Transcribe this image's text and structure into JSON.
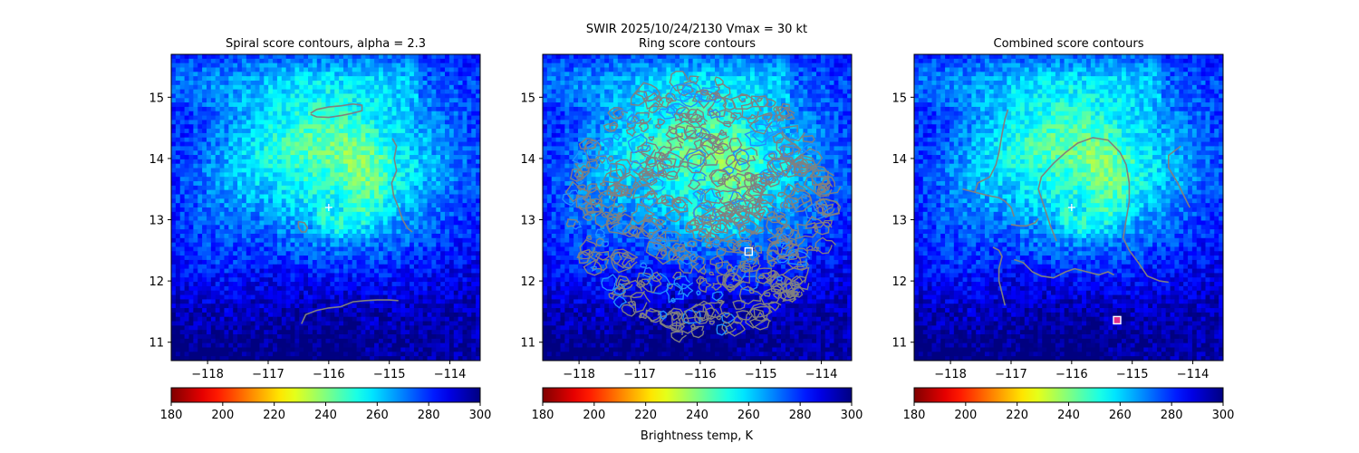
{
  "figure": {
    "suptitle_line1": "SWIR  2025/10/24/2130    Vmax = 30 kt",
    "colorbar_label": "Brightness temp, K"
  },
  "chart_data": [
    {
      "type": "heatmap",
      "title": "Spiral score contours, alpha =  2.3",
      "xlim": [
        -118.6,
        -113.5
      ],
      "ylim": [
        10.7,
        15.7
      ],
      "xticks": [
        -118,
        -117,
        -116,
        -115,
        -114
      ],
      "xtick_labels": [
        "−118",
        "−117",
        "−116",
        "−115",
        "−114"
      ],
      "yticks": [
        11,
        12,
        13,
        14,
        15
      ],
      "ytick_labels": [
        "11",
        "12",
        "13",
        "14",
        "15"
      ],
      "colormap": "jet_r",
      "color_range": [
        180,
        300
      ],
      "center_marker": {
        "lon": -116.0,
        "lat": 13.2,
        "symbol": "+",
        "color": "#ffffff"
      },
      "square_marker": null,
      "contour_color": "#808080",
      "contours": [
        [
          [
            -116.3,
            14.74
          ],
          [
            -116.2,
            14.8
          ],
          [
            -116.0,
            14.84
          ],
          [
            -115.8,
            14.86
          ],
          [
            -115.6,
            14.89
          ],
          [
            -115.45,
            14.87
          ],
          [
            -115.45,
            14.78
          ],
          [
            -115.6,
            14.74
          ],
          [
            -115.8,
            14.7
          ],
          [
            -116.0,
            14.67
          ],
          [
            -116.2,
            14.68
          ],
          [
            -116.3,
            14.72
          ]
        ],
        [
          [
            -114.95,
            14.33
          ],
          [
            -114.88,
            14.2
          ],
          [
            -114.92,
            14.0
          ],
          [
            -114.88,
            13.8
          ],
          [
            -114.96,
            13.6
          ],
          [
            -114.93,
            13.4
          ],
          [
            -114.85,
            13.2
          ],
          [
            -114.78,
            13.0
          ],
          [
            -114.7,
            12.86
          ],
          [
            -114.62,
            12.8
          ]
        ],
        [
          [
            -116.5,
            12.97
          ],
          [
            -116.4,
            12.95
          ],
          [
            -116.35,
            12.87
          ],
          [
            -116.38,
            12.8
          ],
          [
            -116.45,
            12.8
          ],
          [
            -116.5,
            12.88
          ],
          [
            -116.5,
            12.97
          ]
        ],
        [
          [
            -116.45,
            11.3
          ],
          [
            -116.38,
            11.45
          ],
          [
            -116.2,
            11.52
          ],
          [
            -116.0,
            11.56
          ],
          [
            -115.8,
            11.58
          ],
          [
            -115.6,
            11.66
          ],
          [
            -115.4,
            11.68
          ],
          [
            -115.2,
            11.69
          ],
          [
            -115.0,
            11.69
          ],
          [
            -114.85,
            11.68
          ]
        ]
      ]
    },
    {
      "type": "heatmap",
      "title": "Ring score contours",
      "xlim": [
        -118.6,
        -113.5
      ],
      "ylim": [
        10.7,
        15.7
      ],
      "xticks": [
        -118,
        -117,
        -116,
        -115,
        -114
      ],
      "xtick_labels": [
        "−118",
        "−117",
        "−116",
        "−115",
        "−114"
      ],
      "yticks": [
        11,
        12,
        13,
        14,
        15
      ],
      "ytick_labels": [
        "11",
        "12",
        "13",
        "14",
        "15"
      ],
      "colormap": "jet_r",
      "color_range": [
        180,
        300
      ],
      "center_marker": null,
      "square_marker": {
        "lon": -115.2,
        "lat": 12.48,
        "color": "#ffffff"
      },
      "contour_color": "#808080",
      "contour_region": {
        "center_lon": -116.0,
        "center_lat": 13.2,
        "radius_deg": 2.2
      },
      "contours": []
    },
    {
      "type": "heatmap",
      "title": "Combined score contours",
      "xlim": [
        -118.6,
        -113.5
      ],
      "ylim": [
        10.7,
        15.7
      ],
      "xticks": [
        -118,
        -117,
        -116,
        -115,
        -114
      ],
      "xtick_labels": [
        "−118",
        "−117",
        "−116",
        "−115",
        "−114"
      ],
      "yticks": [
        11,
        12,
        13,
        14,
        15
      ],
      "ytick_labels": [
        "11",
        "12",
        "13",
        "14",
        "15"
      ],
      "colormap": "jet_r",
      "color_range": [
        180,
        300
      ],
      "center_marker": {
        "lon": -116.0,
        "lat": 13.2,
        "symbol": "+",
        "color": "#ffffff"
      },
      "square_marker": {
        "lon": -115.25,
        "lat": 11.36,
        "color": "#ffffff",
        "fill": "#e0308a"
      },
      "contour_color": "#808080",
      "contours": [
        [
          [
            -117.6,
            13.45
          ],
          [
            -117.55,
            13.6
          ],
          [
            -117.35,
            13.7
          ],
          [
            -117.25,
            13.9
          ],
          [
            -117.2,
            14.1
          ],
          [
            -117.15,
            14.4
          ],
          [
            -117.1,
            14.65
          ],
          [
            -117.05,
            14.8
          ]
        ],
        [
          [
            -117.8,
            13.5
          ],
          [
            -117.6,
            13.45
          ],
          [
            -117.4,
            13.4
          ],
          [
            -117.2,
            13.36
          ],
          [
            -117.1,
            13.3
          ],
          [
            -117.0,
            13.2
          ],
          [
            -116.95,
            13.05
          ]
        ],
        [
          [
            -117.0,
            12.92
          ],
          [
            -116.85,
            12.9
          ],
          [
            -116.75,
            12.9
          ],
          [
            -116.6,
            12.95
          ],
          [
            -116.55,
            13.02
          ]
        ],
        [
          [
            -116.25,
            12.65
          ],
          [
            -116.35,
            12.9
          ],
          [
            -116.45,
            13.2
          ],
          [
            -116.55,
            13.5
          ],
          [
            -116.5,
            13.7
          ],
          [
            -116.3,
            13.92
          ],
          [
            -116.1,
            14.1
          ],
          [
            -115.9,
            14.25
          ],
          [
            -115.65,
            14.34
          ],
          [
            -115.4,
            14.3
          ],
          [
            -115.2,
            14.1
          ],
          [
            -115.1,
            13.9
          ],
          [
            -115.05,
            13.6
          ],
          [
            -115.05,
            13.3
          ],
          [
            -115.1,
            13.0
          ],
          [
            -115.15,
            12.7
          ],
          [
            -115.05,
            12.5
          ],
          [
            -114.9,
            12.3
          ],
          [
            -114.75,
            12.08
          ],
          [
            -114.55,
            12.0
          ],
          [
            -114.4,
            11.98
          ]
        ],
        [
          [
            -114.2,
            14.2
          ],
          [
            -114.4,
            14.05
          ],
          [
            -114.4,
            13.85
          ],
          [
            -114.25,
            13.6
          ],
          [
            -114.15,
            13.4
          ],
          [
            -114.05,
            13.2
          ]
        ],
        [
          [
            -117.3,
            12.55
          ],
          [
            -117.2,
            12.5
          ],
          [
            -117.15,
            12.4
          ],
          [
            -117.2,
            12.2
          ],
          [
            -117.2,
            12.0
          ],
          [
            -117.15,
            11.8
          ],
          [
            -117.1,
            11.6
          ]
        ],
        [
          [
            -116.95,
            12.35
          ],
          [
            -116.8,
            12.3
          ],
          [
            -116.65,
            12.15
          ],
          [
            -116.5,
            12.08
          ],
          [
            -116.3,
            12.05
          ],
          [
            -116.1,
            12.15
          ],
          [
            -115.95,
            12.2
          ],
          [
            -115.75,
            12.15
          ],
          [
            -115.55,
            12.1
          ],
          [
            -115.4,
            12.15
          ],
          [
            -115.3,
            12.1
          ]
        ]
      ]
    }
  ],
  "colorbars": [
    {
      "ticks": [
        180,
        200,
        220,
        240,
        260,
        280,
        300
      ],
      "tick_labels": [
        "180",
        "200",
        "220",
        "240",
        "260",
        "280",
        "300"
      ]
    },
    {
      "ticks": [
        180,
        200,
        220,
        240,
        260,
        280,
        300
      ],
      "tick_labels": [
        "180",
        "200",
        "220",
        "240",
        "260",
        "280",
        "300"
      ]
    },
    {
      "ticks": [
        180,
        200,
        220,
        240,
        260,
        280,
        300
      ],
      "tick_labels": [
        "180",
        "200",
        "220",
        "240",
        "260",
        "280",
        "300"
      ]
    }
  ]
}
